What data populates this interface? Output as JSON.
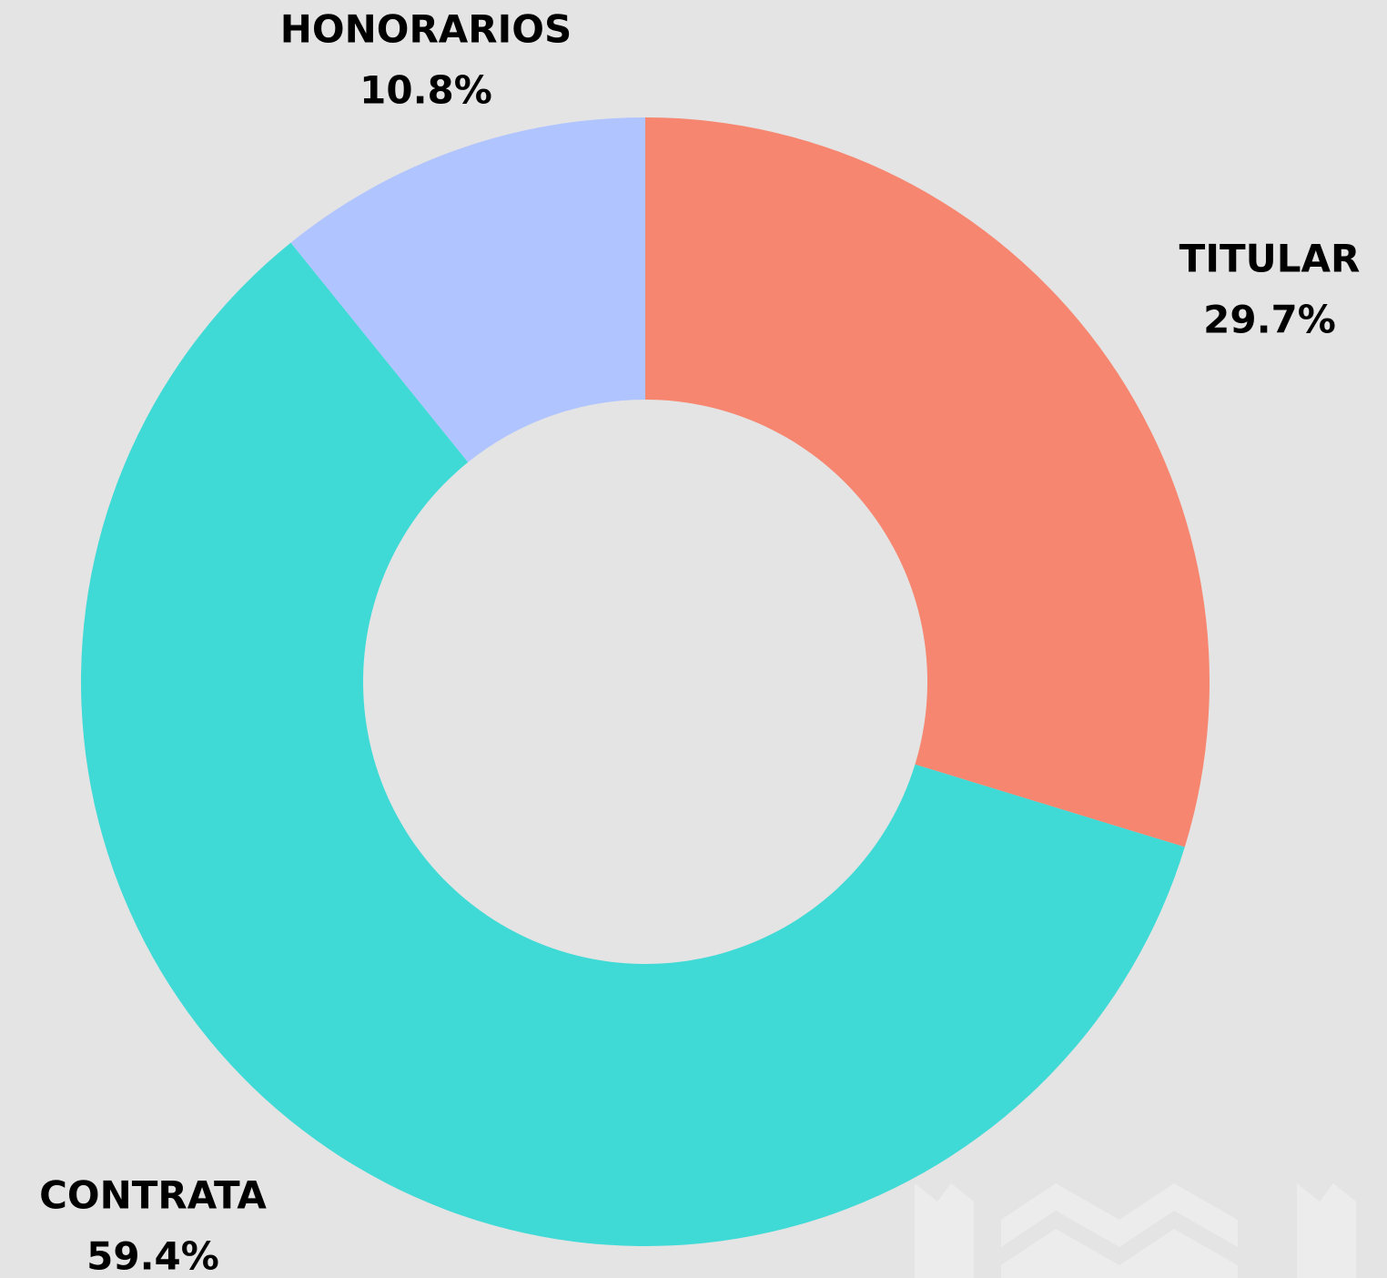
{
  "chart_data": {
    "type": "donut",
    "categories": [
      "TITULAR",
      "CONTRATA",
      "HONORARIOS"
    ],
    "values": [
      29.7,
      59.4,
      10.8
    ],
    "value_labels": [
      "29.7%",
      "59.4%",
      "10.8%"
    ],
    "colors": [
      "#f6866f",
      "#40dad6",
      "#b0c4ff"
    ]
  }
}
